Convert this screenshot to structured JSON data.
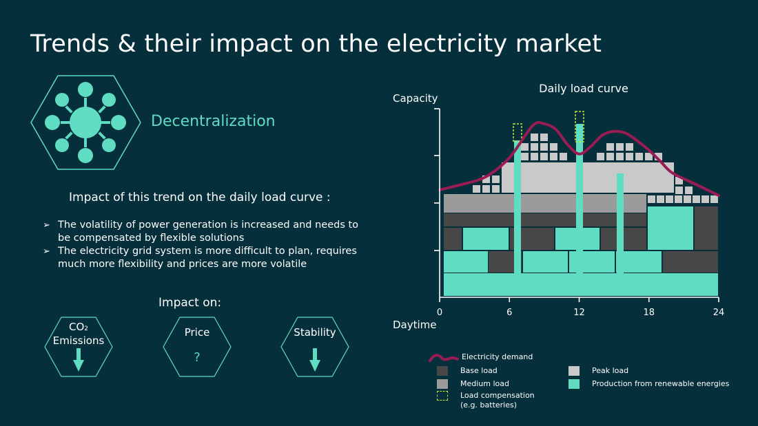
{
  "page": {
    "title": "Trends & their impact on the electricity market"
  },
  "trend": {
    "name": "Decentralization",
    "icon": "decentralization-network-icon"
  },
  "impact_heading": "Impact of this trend on the daily load curve :",
  "bullets": [
    "The volatility of power generation is increased and needs to be compensated by flexible solutions",
    "The electricity grid system is more difficult to plan, requires much more flexibility and prices are more volatile"
  ],
  "impact_on": {
    "heading": "Impact on:",
    "cards": [
      {
        "label_main": "CO",
        "label_sub": "2",
        "label_line2": "Emissions",
        "indicator": "down-arrow-icon"
      },
      {
        "label_main": "Price",
        "indicator_text": "?"
      },
      {
        "label_main": "Stability",
        "indicator": "down-arrow-icon"
      }
    ]
  },
  "chart_data": {
    "type": "area",
    "title": "Daily load curve",
    "ylabel": "Capacity",
    "xlabel": "Daytime",
    "x_ticks": [
      "0",
      "6",
      "12",
      "18",
      "24"
    ],
    "xlim": [
      0,
      24
    ],
    "series": [
      {
        "name": "Electricity demand",
        "x": [
          0,
          2,
          4,
          6,
          8,
          9,
          10,
          11,
          12,
          13,
          14,
          15,
          16,
          17,
          18,
          19,
          20,
          22,
          24
        ],
        "y": [
          0.57,
          0.6,
          0.64,
          0.74,
          0.91,
          0.92,
          0.89,
          0.81,
          0.76,
          0.8,
          0.86,
          0.88,
          0.87,
          0.83,
          0.78,
          0.72,
          0.66,
          0.6,
          0.54
        ]
      }
    ]
  },
  "legend": {
    "demand": "Electricity demand",
    "base": "Base load",
    "medium": "Medium load",
    "compensation_line1": "Load compensation",
    "compensation_line2": "(e.g. batteries)",
    "peak": "Peak load",
    "renewable": "Production from renewable energies"
  },
  "colors": {
    "background": "#062f3c",
    "accent": "#5fdcc1",
    "demand": "#9b1b55",
    "base": "#474747",
    "medium": "#9b9b9b",
    "peak": "#c9c9c9",
    "compensation": "#c6e83a"
  }
}
